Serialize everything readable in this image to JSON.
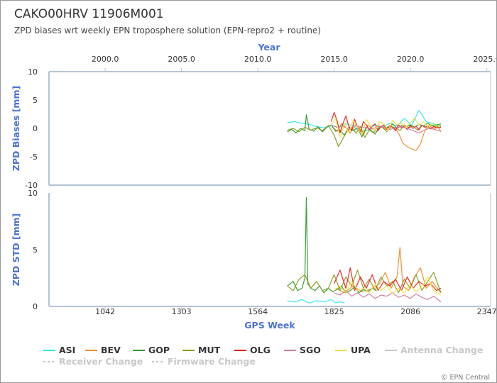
{
  "title": "CAKO00HRV 11906M001",
  "subtitle": "ZPD biases wrt weekly EPN troposphere solution (EPN-repro2 + routine)",
  "credit": "© EPN Central",
  "chart_data": [
    {
      "type": "line",
      "name": "bias-panel",
      "ylabel": "ZPD Biases [mm]",
      "xlabel_top": "Year",
      "ylim": [
        -10,
        10
      ],
      "yticks": [
        "10",
        "5",
        "0",
        "-5",
        "-10"
      ],
      "ytick_values": [
        10,
        5,
        0,
        -5,
        -10
      ],
      "year_ticks": [
        "2000.0",
        "2005.0",
        "2010.0",
        "2015.0",
        "2020.0",
        "2025.0"
      ],
      "grid": false,
      "series": [
        {
          "name": "ASI",
          "x": [
            1665,
            1690,
            1715,
            1740,
            1765,
            1790,
            1815,
            1840,
            1865,
            1890,
            1915,
            1940,
            1965,
            1990,
            2015,
            2040,
            2065,
            2090,
            2115,
            2140,
            2165,
            2190
          ],
          "y": [
            1.0,
            1.2,
            0.9,
            0.7,
            0.3,
            0.1,
            0.5,
            0.2,
            0.8,
            0.4,
            -0.6,
            -0.3,
            0.6,
            0.2,
            0.9,
            0.4,
            1.8,
            0.5,
            3.2,
            1.2,
            0.8,
            0.3
          ]
        },
        {
          "name": "BEV",
          "x": [
            1818,
            1835,
            1850,
            1865,
            1880,
            1895,
            1910,
            1925,
            1940,
            1955,
            1970,
            1985,
            2000,
            2015,
            2030,
            2045,
            2060,
            2075,
            2090,
            2105,
            2120,
            2135,
            2150,
            2165,
            2180,
            2190
          ],
          "y": [
            0.3,
            -0.5,
            0.8,
            0.2,
            -0.8,
            0.5,
            0.1,
            -1.2,
            0.6,
            0.0,
            -0.6,
            0.4,
            -0.2,
            0.5,
            0.1,
            -0.8,
            -2.6,
            -3.2,
            -3.6,
            -3.9,
            -2.8,
            -0.4,
            0.6,
            -0.2,
            0.3,
            -0.6
          ]
        },
        {
          "name": "GOP",
          "x": [
            1665,
            1680,
            1695,
            1710,
            1725,
            1730,
            1740,
            1755,
            1770,
            1785,
            1800,
            1815,
            1830,
            1845,
            1860,
            1875,
            1890,
            1905,
            1920,
            1935,
            1950,
            1965,
            1980,
            1995,
            2010,
            2025,
            2040,
            2055,
            2070,
            2085,
            2100,
            2115,
            2130,
            2145,
            2160,
            2175,
            2190
          ],
          "y": [
            -0.6,
            -0.2,
            -0.8,
            0.0,
            -0.4,
            2.4,
            -0.2,
            -0.5,
            0.3,
            -0.6,
            0.2,
            0.6,
            -0.5,
            -0.3,
            -1.2,
            0.2,
            -0.4,
            0.1,
            -1.5,
            0.2,
            -0.3,
            -1.0,
            0.3,
            0.1,
            0.2,
            0.8,
            0.0,
            0.5,
            0.3,
            0.6,
            0.2,
            0.7,
            0.4,
            0.9,
            0.5,
            0.6,
            0.8
          ]
        },
        {
          "name": "MUT",
          "x": [
            1665,
            1685,
            1705,
            1725,
            1745,
            1765,
            1785,
            1805,
            1825,
            1840,
            1855,
            1870,
            1885,
            1900,
            1915,
            1930,
            1945,
            1960,
            1975,
            1990,
            2005,
            2020,
            2035,
            2050,
            2065,
            2080,
            2095,
            2110,
            2125,
            2140,
            2155,
            2170,
            2190
          ],
          "y": [
            -0.3,
            0.0,
            -0.6,
            0.2,
            -0.3,
            0.1,
            -0.4,
            0.5,
            -1.2,
            -3.2,
            -1.8,
            -0.4,
            0.2,
            -0.9,
            0.3,
            -1.6,
            -0.3,
            -0.8,
            0.5,
            0.2,
            -0.6,
            0.3,
            0.1,
            -0.4,
            0.6,
            0.1,
            0.4,
            -0.3,
            0.5,
            0.2,
            0.6,
            0.3,
            0.5
          ]
        },
        {
          "name": "OLG",
          "x": [
            1815,
            1825,
            1835,
            1845,
            1855,
            1865,
            1875,
            1885,
            1895,
            1905,
            1915,
            1925,
            1935,
            1945,
            1955,
            1965,
            1975,
            1985,
            1995,
            2005,
            2015,
            2025,
            2035,
            2045,
            2055,
            2065,
            2075,
            2085,
            2095,
            2105,
            2115,
            2125,
            2135,
            2145,
            2155,
            2165,
            2175,
            2190
          ],
          "y": [
            1.2,
            2.8,
            1.4,
            -0.8,
            0.8,
            2.2,
            0.4,
            -0.4,
            1.6,
            0.2,
            -0.6,
            1.2,
            0.6,
            -0.2,
            0.4,
            0.8,
            -0.4,
            0.3,
            0.6,
            -0.2,
            0.4,
            0.2,
            -0.4,
            0.6,
            0.1,
            0.3,
            -0.2,
            0.5,
            0.0,
            0.4,
            -0.3,
            0.6,
            0.2,
            0.4,
            -0.1,
            0.3,
            0.1,
            0.2
          ]
        },
        {
          "name": "SGO",
          "x": [
            1815,
            1835,
            1855,
            1875,
            1895,
            1915,
            1935,
            1955,
            1975,
            1995,
            2015,
            2035,
            2055,
            2075,
            2095,
            2115,
            2135,
            2155,
            2175,
            2190
          ],
          "y": [
            0.6,
            0.2,
            0.4,
            -0.2,
            0.5,
            0.3,
            0.1,
            -0.1,
            0.3,
            0.2,
            -0.2,
            0.1,
            0.3,
            0.0,
            -0.4,
            -0.8,
            -0.3,
            0.1,
            -0.3,
            -0.5
          ]
        },
        {
          "name": "UPA",
          "x": [
            1815,
            1830,
            1845,
            1860,
            1875,
            1890,
            1905,
            1920,
            1935,
            1950,
            1965,
            1980,
            1995,
            2010,
            2025,
            2040,
            2055,
            2070,
            2085,
            2100,
            2115,
            2130,
            2145,
            2160,
            2175,
            2190
          ],
          "y": [
            0.5,
            1.8,
            -1.6,
            0.9,
            -0.8,
            1.4,
            0.2,
            -1.2,
            1.6,
            0.5,
            -0.4,
            1.2,
            0.8,
            -0.3,
            1.4,
            0.6,
            1.0,
            0.2,
            0.9,
            1.8,
            0.6,
            1.2,
            0.3,
            0.8,
            0.4,
            0.6
          ]
        }
      ]
    },
    {
      "type": "line",
      "name": "std-panel",
      "ylabel": "ZPD STD [mm]",
      "xlabel": "GPS Week",
      "ylim": [
        0,
        10
      ],
      "yticks": [
        "10",
        "5",
        "0"
      ],
      "ytick_values": [
        10,
        5,
        0
      ],
      "xticks": [
        "1042",
        "1303",
        "1564",
        "1825",
        "2086",
        "2347"
      ],
      "xlim": [
        850,
        2360
      ],
      "grid": false,
      "series": [
        {
          "name": "ASI",
          "x": [
            1665,
            1690,
            1715,
            1740,
            1765,
            1790,
            1815,
            1830,
            1845,
            1860
          ],
          "y": [
            0.5,
            0.4,
            0.6,
            0.3,
            0.5,
            0.4,
            0.6,
            0.3,
            0.4,
            0.3
          ]
        },
        {
          "name": "BEV",
          "x": [
            1830,
            1860,
            1890,
            1920,
            1950,
            1980,
            2000,
            2020,
            2040,
            2050,
            2060,
            2080,
            2100,
            2120,
            2140,
            2160,
            2190
          ],
          "y": [
            1.6,
            1.2,
            1.8,
            1.3,
            1.5,
            2.0,
            3.0,
            1.6,
            2.6,
            5.2,
            1.8,
            1.4,
            2.6,
            3.4,
            1.6,
            2.2,
            1.2
          ]
        },
        {
          "name": "GOP",
          "x": [
            1665,
            1685,
            1700,
            1715,
            1725,
            1730,
            1735,
            1745,
            1760,
            1775,
            1790,
            1805,
            1820,
            1835,
            1850,
            1865,
            1880,
            1895,
            1910,
            1925,
            1940,
            1955,
            1970
          ],
          "y": [
            1.8,
            2.2,
            1.4,
            1.6,
            2.5,
            9.6,
            2.0,
            1.6,
            1.4,
            1.8,
            1.2,
            1.6,
            1.3,
            1.5,
            1.8,
            1.2,
            1.4,
            1.7,
            1.2,
            1.5,
            1.3,
            1.6,
            1.4
          ]
        },
        {
          "name": "MUT",
          "x": [
            1665,
            1685,
            1705,
            1725,
            1745,
            1765,
            1785,
            1805,
            1825,
            1845,
            1865,
            1885,
            1905,
            1925,
            1945,
            1965,
            1985,
            2005,
            2025,
            2045,
            2065,
            2085,
            2105,
            2125,
            2145,
            2165,
            2190
          ],
          "y": [
            1.8,
            1.4,
            2.4,
            2.8,
            1.6,
            2.2,
            1.4,
            1.6,
            2.8,
            1.4,
            2.6,
            1.8,
            3.2,
            1.6,
            2.4,
            1.4,
            2.6,
            1.8,
            2.2,
            1.2,
            2.4,
            1.6,
            2.8,
            1.4,
            2.2,
            3.0,
            1.2
          ]
        },
        {
          "name": "OLG",
          "x": [
            1825,
            1845,
            1865,
            1880,
            1895,
            1915,
            1935,
            1955,
            1975,
            1995,
            2015,
            2035,
            2055,
            2075,
            2095,
            2115,
            2135,
            2155,
            2175,
            2190
          ],
          "y": [
            2.0,
            3.2,
            1.6,
            3.4,
            1.4,
            2.6,
            1.6,
            2.8,
            1.4,
            2.2,
            1.8,
            2.4,
            1.4,
            2.6,
            1.6,
            2.2,
            1.8,
            2.0,
            1.4,
            1.6
          ]
        },
        {
          "name": "SGO",
          "x": [
            1825,
            1845,
            1865,
            1885,
            1905,
            1925,
            1945,
            1965,
            1985,
            2005,
            2025,
            2045,
            2065,
            2085,
            2105,
            2125,
            2145,
            2165,
            2190
          ],
          "y": [
            1.2,
            1.0,
            1.4,
            0.9,
            1.2,
            0.8,
            1.1,
            0.7,
            1.0,
            0.9,
            1.2,
            0.8,
            1.0,
            0.7,
            1.1,
            0.8,
            0.6,
            0.9,
            0.4
          ]
        },
        {
          "name": "UPA",
          "x": [
            1825,
            1845,
            1865,
            1885,
            1905,
            1925,
            1945,
            1965,
            1985,
            2005,
            2025,
            2045,
            2065,
            2085,
            2105,
            2125,
            2145,
            2165,
            2190
          ],
          "y": [
            1.4,
            1.8,
            1.2,
            2.2,
            1.4,
            1.6,
            1.2,
            2.0,
            1.4,
            1.8,
            1.1,
            1.6,
            1.2,
            1.9,
            1.3,
            1.7,
            2.6,
            1.4,
            1.0
          ]
        }
      ]
    }
  ],
  "legend": [
    {
      "label": "ASI",
      "color": "#33e6ee",
      "dashed": false,
      "active": true
    },
    {
      "label": "BEV",
      "color": "#f08a2a",
      "dashed": false,
      "active": true
    },
    {
      "label": "GOP",
      "color": "#2c9a2c",
      "dashed": false,
      "active": true
    },
    {
      "label": "MUT",
      "color": "#8a9a1e",
      "dashed": false,
      "active": true
    },
    {
      "label": "OLG",
      "color": "#e8231c",
      "dashed": false,
      "active": true
    },
    {
      "label": "SGO",
      "color": "#d47a9a",
      "dashed": false,
      "active": true
    },
    {
      "label": "UPA",
      "color": "#f4e048",
      "dashed": false,
      "active": true
    },
    {
      "label": "Antenna Change",
      "color": "#c8c8c8",
      "dashed": false,
      "active": false
    },
    {
      "label": "Receiver Change",
      "color": "#c8c8c8",
      "dashed": true,
      "active": false
    },
    {
      "label": "Firmware Change",
      "color": "#c8c8c8",
      "dashed": true,
      "active": false
    }
  ],
  "colors": {
    "axis_label": "#4a72d6",
    "frame": "#b4c4d4"
  }
}
